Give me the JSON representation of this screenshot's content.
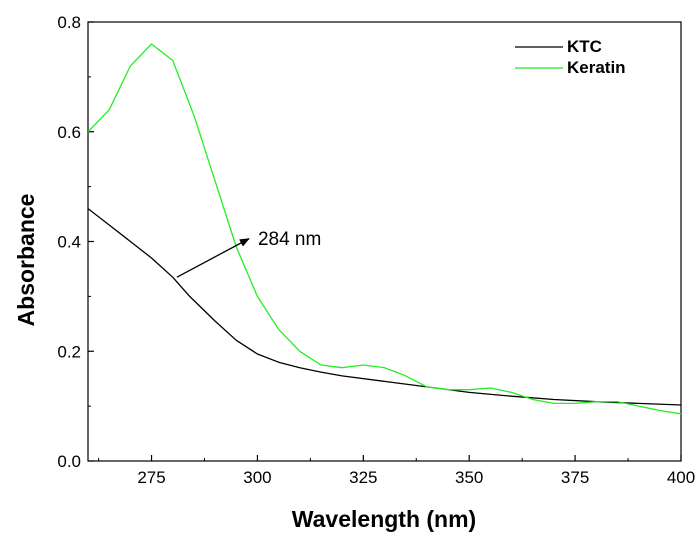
{
  "chart_data": {
    "type": "line",
    "xlabel": "Wavelength (nm)",
    "ylabel": "Absorbance",
    "xlim": [
      260,
      400
    ],
    "ylim": [
      0.0,
      0.8
    ],
    "x_ticks": [
      275,
      300,
      325,
      350,
      375,
      400
    ],
    "x_tick_labels": [
      "275",
      "300",
      "325",
      "350",
      "375",
      "400"
    ],
    "y_ticks": [
      0.0,
      0.2,
      0.4,
      0.6,
      0.8
    ],
    "y_tick_labels": [
      "0.0",
      "0.2",
      "0.4",
      "0.6",
      "0.8"
    ],
    "grid": false,
    "legend_position": "top-right",
    "series": [
      {
        "name": "KTC",
        "color": "#000000",
        "x": [
          260,
          265,
          270,
          275,
          280,
          284,
          290,
          295,
          300,
          305,
          310,
          315,
          320,
          330,
          340,
          350,
          360,
          370,
          380,
          390,
          400
        ],
        "y": [
          0.46,
          0.43,
          0.4,
          0.37,
          0.335,
          0.3,
          0.255,
          0.22,
          0.195,
          0.18,
          0.17,
          0.162,
          0.155,
          0.145,
          0.135,
          0.125,
          0.118,
          0.112,
          0.108,
          0.105,
          0.102
        ]
      },
      {
        "name": "Keratin",
        "color": "#22ee22",
        "x": [
          260,
          265,
          270,
          275,
          280,
          285,
          290,
          295,
          300,
          305,
          310,
          315,
          320,
          325,
          330,
          335,
          340,
          345,
          350,
          355,
          360,
          365,
          370,
          375,
          380,
          385,
          390,
          395,
          400
        ],
        "y": [
          0.6,
          0.64,
          0.72,
          0.76,
          0.73,
          0.63,
          0.51,
          0.39,
          0.3,
          0.24,
          0.2,
          0.175,
          0.17,
          0.175,
          0.17,
          0.155,
          0.135,
          0.13,
          0.13,
          0.133,
          0.125,
          0.112,
          0.105,
          0.105,
          0.108,
          0.108,
          0.1,
          0.092,
          0.086
        ]
      }
    ],
    "annotations": [
      {
        "text": "284 nm",
        "arrow_from": [
          281,
          0.335
        ],
        "arrow_to": [
          298,
          0.405
        ]
      }
    ]
  }
}
